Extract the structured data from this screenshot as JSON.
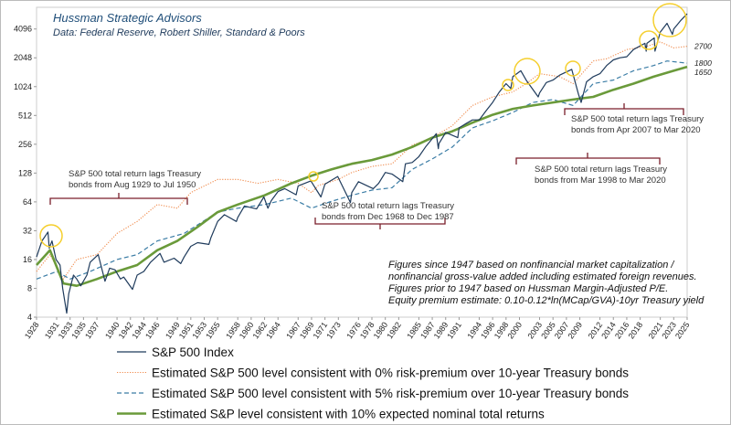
{
  "chart_data": {
    "type": "line",
    "title": "Hussman Strategic Advisors",
    "subtitle": "Data: Federal Reserve, Robert Shiller, Standard & Poors",
    "yscale": "log",
    "xlim": [
      1928,
      2025
    ],
    "ylim": [
      4,
      6900
    ],
    "yticks": [
      4,
      8,
      16,
      32,
      64,
      128,
      256,
      512,
      1024,
      2048,
      4096
    ],
    "xticks": [
      1928,
      1931,
      1933,
      1935,
      1937,
      1940,
      1942,
      1944,
      1946,
      1949,
      1951,
      1953,
      1955,
      1958,
      1960,
      1962,
      1964,
      1967,
      1969,
      1971,
      1973,
      1976,
      1978,
      1980,
      1982,
      1985,
      1987,
      1989,
      1991,
      1994,
      1996,
      1998,
      2000,
      2003,
      2005,
      2007,
      2009,
      2012,
      2014,
      2016,
      2018,
      2021,
      2023,
      2025
    ],
    "series": [
      {
        "name": "S&P 500 Index",
        "color": "#1f3b5c",
        "style": "solid",
        "x": [
          1928,
          1928.8,
          1929.7,
          1929.9,
          1930.3,
          1930.9,
          1931.5,
          1931.9,
          1932.5,
          1932.8,
          1933.5,
          1934,
          1934.6,
          1935.5,
          1936,
          1937.2,
          1938.2,
          1938.9,
          1939.7,
          1940.5,
          1941,
          1942.3,
          1943,
          1944,
          1945,
          1946.4,
          1947,
          1948.5,
          1949.5,
          1950,
          1951,
          1952,
          1953.7,
          1954,
          1955,
          1956,
          1957.8,
          1958,
          1959,
          1960.8,
          1961.9,
          1962.5,
          1963,
          1964,
          1965,
          1966.7,
          1967,
          1968.9,
          1970.4,
          1971,
          1972.9,
          1974.8,
          1975,
          1976,
          1978.2,
          1979,
          1980,
          1981,
          1982.6,
          1983,
          1984,
          1985,
          1986,
          1987.6,
          1987.9,
          1988,
          1989,
          1990.8,
          1991,
          1992,
          1993,
          1994,
          1995,
          1996,
          1997,
          1998,
          1998.7,
          1999,
          2000.2,
          2001,
          2002.8,
          2003,
          2004,
          2005,
          2006,
          2007.8,
          2008.8,
          2009.2,
          2010,
          2011,
          2012,
          2013,
          2014,
          2015,
          2016,
          2017,
          2018.7,
          2018.9,
          2019,
          2020.1,
          2020.2,
          2021,
          2022,
          2022.8,
          2023,
          2024,
          2025
        ],
        "values": [
          17,
          25,
          31,
          21,
          25,
          16,
          14,
          8,
          4.4,
          7,
          11,
          10,
          8.5,
          11,
          15,
          18,
          9.5,
          13,
          12.5,
          10,
          10.5,
          7.8,
          11,
          12,
          15,
          18.5,
          15,
          16.5,
          14.5,
          17,
          22,
          24,
          23,
          27,
          40,
          47,
          40,
          44,
          58,
          54,
          72,
          55,
          66,
          82,
          88,
          76,
          94,
          106,
          72,
          98,
          118,
          63,
          80,
          104,
          88,
          100,
          130,
          125,
          104,
          160,
          165,
          190,
          240,
          330,
          230,
          260,
          340,
          300,
          380,
          420,
          460,
          460,
          570,
          700,
          900,
          1100,
          980,
          1300,
          1500,
          1200,
          800,
          880,
          1130,
          1200,
          1350,
          1550,
          850,
          700,
          1150,
          1300,
          1400,
          1700,
          1950,
          2050,
          2100,
          2500,
          2900,
          2400,
          2900,
          3300,
          2400,
          3800,
          4700,
          3600,
          4100,
          5000,
          5900
        ]
      },
      {
        "name": "Estimated S&P 500 level consistent with 0% risk-premium over 10-year Treasury bonds",
        "color": "#f08a4b",
        "style": "dotted",
        "end_label": 2700,
        "x": [
          1928,
          1930,
          1932,
          1934,
          1937,
          1940,
          1943,
          1946,
          1949,
          1951,
          1955,
          1958,
          1961,
          1964,
          1967,
          1969,
          1970,
          1973,
          1975,
          1978,
          1981,
          1984,
          1987,
          1990,
          1993,
          1996,
          1999,
          2001,
          2003,
          2006,
          2008,
          2011,
          2013,
          2016,
          2019,
          2021,
          2023,
          2025
        ],
        "values": [
          12,
          18,
          10,
          16,
          18,
          30,
          40,
          60,
          55,
          80,
          110,
          110,
          100,
          110,
          100,
          80,
          95,
          110,
          130,
          150,
          160,
          250,
          300,
          400,
          650,
          800,
          900,
          1100,
          1400,
          1300,
          1100,
          1900,
          2000,
          2500,
          2700,
          3000,
          2600,
          2700
        ]
      },
      {
        "name": "Estimated S&P 500 level consistent with 5% risk-premium over 10-year Treasury bonds",
        "color": "#3a7ca5",
        "style": "dashed",
        "end_label": 1800,
        "x": [
          1928,
          1931,
          1933,
          1936,
          1940,
          1943,
          1946,
          1950,
          1955,
          1958,
          1962,
          1966,
          1969,
          1972,
          1975,
          1978,
          1981,
          1984,
          1987,
          1990,
          1993,
          1996,
          1999,
          2002,
          2005,
          2008,
          2011,
          2014,
          2017,
          2020,
          2022,
          2025
        ],
        "values": [
          10,
          12,
          10,
          12,
          16,
          18,
          25,
          30,
          50,
          55,
          60,
          70,
          55,
          65,
          75,
          85,
          90,
          140,
          180,
          240,
          380,
          450,
          550,
          700,
          750,
          650,
          1100,
          1200,
          1500,
          1700,
          1900,
          1800
        ]
      },
      {
        "name": "Estimated S&P level consistent with 10% expected nominal total returns",
        "color": "#6a9a3a",
        "style": "thick",
        "end_label": 1650,
        "x": [
          1928,
          1930,
          1932,
          1934,
          1937,
          1940,
          1943,
          1946,
          1949,
          1952,
          1955,
          1958,
          1962,
          1966,
          1969,
          1972,
          1975,
          1978,
          1981,
          1984,
          1987,
          1990,
          1993,
          1996,
          1999,
          2002,
          2005,
          2008,
          2011,
          2014,
          2017,
          2020,
          2023,
          2025
        ],
        "values": [
          14,
          20,
          9,
          8.5,
          10,
          12,
          14,
          20,
          25,
          35,
          50,
          60,
          75,
          100,
          120,
          140,
          160,
          175,
          200,
          240,
          300,
          350,
          430,
          520,
          600,
          650,
          700,
          750,
          800,
          950,
          1100,
          1300,
          1500,
          1650
        ]
      }
    ],
    "annotations": [
      {
        "lines": [
          "S&P 500 total return lags Treasury",
          "bonds from Aug 1929 to Jul 1950"
        ]
      },
      {
        "lines": [
          "S&P 500 total return lags Treasury",
          "bonds from Dec 1968 to Dec 1987"
        ]
      },
      {
        "lines": [
          "S&P 500 total return lags Treasury",
          "bonds from Mar 1998 to Mar 2020"
        ]
      },
      {
        "lines": [
          "S&P 500 total return lags Treasury",
          "bonds from Apr 2007 to Mar 2020"
        ]
      }
    ],
    "notes": [
      "Figures since 1947 based on nonfinancial market capitalization /",
      "nonfinancial gross-value added including estimated foreign revenues.",
      "Figures prior to 1947 based on Hussman Margin-Adjusted P/E.",
      "Equity premium estimate: 0.10-0.12*ln(MCap/GVA)-10yr Treasury yield"
    ]
  }
}
